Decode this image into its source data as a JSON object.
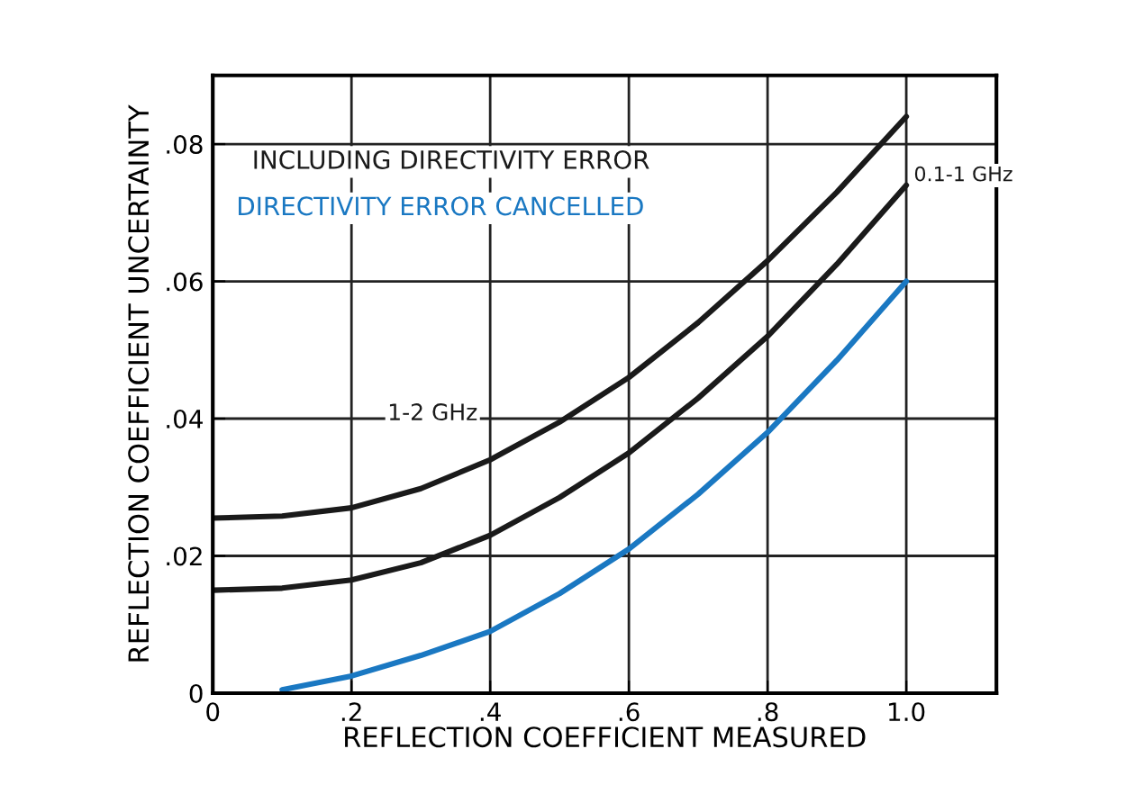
{
  "chart_data": {
    "type": "line",
    "xlabel": "REFLECTION COEFFICIENT MEASURED",
    "ylabel": "REFLECTION COEFFICIENT UNCERTAINTY",
    "annotations": [
      "INCLUDING DIRECTIVITY ERROR"
    ],
    "series": [
      {
        "name": "1-2 GHz",
        "color": "#1a1a1a",
        "x": [
          0,
          0.1,
          0.2,
          0.3,
          0.4,
          0.5,
          0.6,
          0.7,
          0.8,
          0.9,
          1.0
        ],
        "values": [
          0.0255,
          0.0258,
          0.027,
          0.0298,
          0.034,
          0.0395,
          0.046,
          0.054,
          0.063,
          0.073,
          0.084
        ]
      },
      {
        "name": "0.1-1 GHz",
        "color": "#1a1a1a",
        "x": [
          0,
          0.1,
          0.2,
          0.3,
          0.4,
          0.5,
          0.6,
          0.7,
          0.8,
          0.9,
          1.0
        ],
        "values": [
          0.015,
          0.0153,
          0.0165,
          0.019,
          0.023,
          0.0285,
          0.035,
          0.043,
          0.052,
          0.0625,
          0.074
        ]
      },
      {
        "name": "DIRECTIVITY ERROR CANCELLED",
        "color": "#1a78c2",
        "x": [
          0.1,
          0.2,
          0.3,
          0.4,
          0.5,
          0.6,
          0.7,
          0.8,
          0.9,
          1.0
        ],
        "values": [
          0.0005,
          0.0025,
          0.0055,
          0.009,
          0.0145,
          0.021,
          0.029,
          0.038,
          0.0485,
          0.06
        ]
      }
    ],
    "xlim": [
      0,
      1.13
    ],
    "ylim": [
      0,
      0.09
    ],
    "xticks": [
      0,
      {
        "value": 0.2,
        "label": ".2"
      },
      {
        "value": 0.4,
        "label": ".4"
      },
      {
        "value": 0.6,
        "label": ".6"
      },
      {
        "value": 0.8,
        "label": ".8"
      },
      {
        "value": 1.0,
        "label": "1.0"
      }
    ],
    "yticks": [
      0,
      {
        "value": 0.02,
        "label": ".02"
      },
      {
        "value": 0.04,
        "label": ".04"
      },
      {
        "value": 0.06,
        "label": ".06"
      },
      {
        "value": 0.08,
        "label": ".08"
      }
    ],
    "grid": true,
    "marker": "none",
    "line_style": "solid",
    "legend": "top left"
  }
}
